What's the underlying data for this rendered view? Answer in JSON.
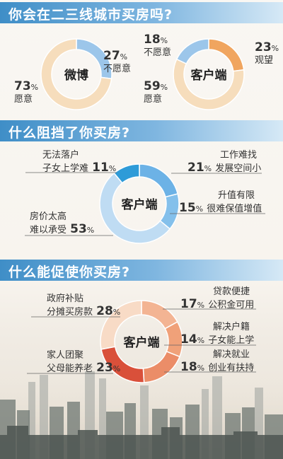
{
  "sections": [
    {
      "title": "你会在二三线城市买房吗?"
    },
    {
      "title": "什么阻挡了你买房?"
    },
    {
      "title": "什么能促使你买房?"
    }
  ],
  "labels": {
    "weibo_no_pct": "27",
    "weibo_no": "不愿意",
    "weibo_yes_pct": "73",
    "weibo_yes": "愿意",
    "client_no_pct": "18",
    "client_no": "不愿意",
    "client_wait_pct": "23",
    "client_wait": "观望",
    "client_yes_pct": "59",
    "client_yes": "愿意",
    "b1a": "无法落户",
    "b1b": "子女上学难",
    "b1p": "11",
    "b2a": "工作难找",
    "b2b": "发展空间小",
    "b2p": "21",
    "b3a": "升值有限",
    "b3b": "很难保值增值",
    "b3p": "15",
    "b4a": "房价太高",
    "b4b": "难以承受",
    "b4p": "53",
    "p1a": "政府补贴",
    "p1b": "分摊买房款",
    "p1p": "28",
    "p2a": "贷款便捷",
    "p2b": "公积金可用",
    "p2p": "17",
    "p3a": "解决户籍",
    "p3b": "子女能上学",
    "p3p": "14",
    "p4a": "家人团聚",
    "p4b": "父母能养老",
    "p4p": "23",
    "p5a": "解决就业",
    "p5b": "创业有扶持",
    "p5p": "18",
    "unit": "%"
  },
  "chart_data": [
    {
      "type": "pie",
      "center_label": "微博",
      "categories": [
        "不愿意",
        "愿意"
      ],
      "values": [
        27,
        73
      ],
      "colors": [
        "#9cc6ea",
        "#f6ddbc"
      ]
    },
    {
      "type": "pie",
      "center_label": "客户端",
      "categories": [
        "观望",
        "愿意",
        "不愿意"
      ],
      "values": [
        23,
        59,
        18
      ],
      "colors": [
        "#f0a55f",
        "#f6ddbc",
        "#9cc6ea"
      ]
    },
    {
      "type": "pie",
      "center_label": "客户端",
      "categories": [
        "工作难找 发展空间小",
        "升值有限 很难保值增值",
        "房价太高 难以承受",
        "无法落户 子女上学难"
      ],
      "values": [
        21,
        15,
        53,
        11
      ],
      "colors": [
        "#6cb2e6",
        "#84c0eb",
        "#bfdcf3",
        "#2e9bd8"
      ]
    },
    {
      "type": "pie",
      "center_label": "客户端",
      "categories": [
        "贷款便捷 公积金可用",
        "解决户籍 子女能上学",
        "解决就业 创业有扶持",
        "家人团聚 父母能养老",
        "政府补贴 分摊买房款"
      ],
      "values": [
        17,
        14,
        18,
        23,
        28
      ],
      "colors": [
        "#f3b493",
        "#f0a179",
        "#eb8d68",
        "#d9503a",
        "#f8dbc6"
      ]
    }
  ]
}
